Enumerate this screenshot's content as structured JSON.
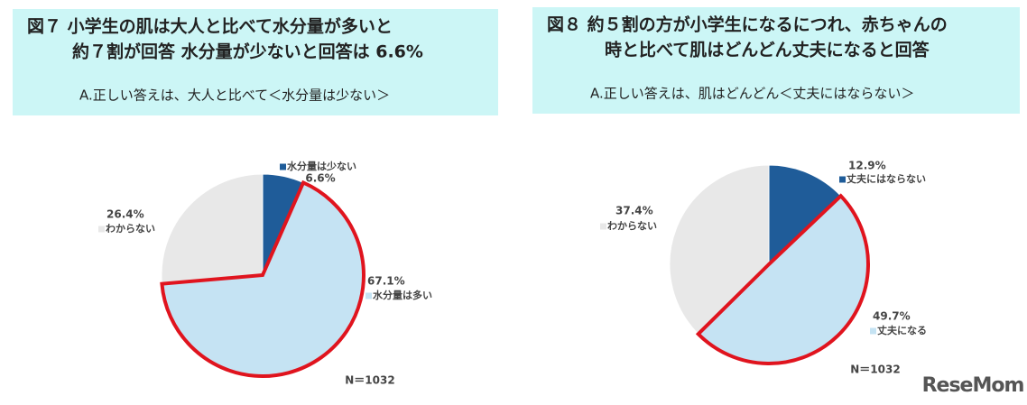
{
  "chart_data": [
    {
      "type": "pie",
      "title": [
        "図７ 小学生の肌は大人と比べて水分量が多いと",
        "約７割が回答 水分量が少ないと回答は 6.6%"
      ],
      "subtitle": "A.正しい答えは、大人と比べて＜水分量は少ない＞",
      "categories": [
        "水分量は少ない",
        "水分量は多い",
        "わからない"
      ],
      "values": [
        6.6,
        67.1,
        26.4
      ],
      "value_labels": [
        "6.6%",
        "67.1%",
        "26.4%"
      ],
      "colors": [
        "#1f5c99",
        "#c5e3f3",
        "#e8e8e8"
      ],
      "highlight_index": 1,
      "highlight_color": "#e0141e",
      "note": "N＝1032"
    },
    {
      "type": "pie",
      "title": [
        "図８ 約５割の方が小学生になるにつれ、赤ちゃんの",
        "時と比べて肌はどんどん丈夫になると回答"
      ],
      "subtitle": "A.正しい答えは、肌はどんどん＜丈夫にはならない＞",
      "categories": [
        "丈夫にはならない",
        "丈夫になる",
        "わからない"
      ],
      "values": [
        12.9,
        49.7,
        37.4
      ],
      "value_labels": [
        "12.9%",
        "49.7%",
        "37.4%"
      ],
      "colors": [
        "#1f5c99",
        "#c5e3f3",
        "#e8e8e8"
      ],
      "highlight_index": 1,
      "highlight_color": "#e0141e",
      "note": "N＝1032"
    }
  ],
  "watermark": "ReseMom"
}
